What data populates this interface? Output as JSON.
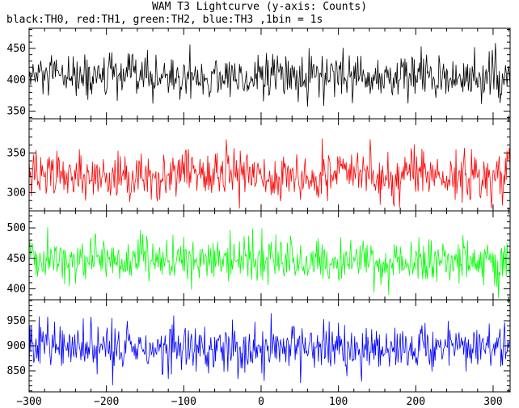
{
  "chart_data": {
    "type": "line",
    "title": "WAM T3 Lightcurve (y-axis: Counts)",
    "subtitle": "black:TH0, red:TH1, green:TH2, blue:TH3 ,1bin = 1s",
    "xlim": [
      -300,
      322
    ],
    "x_ticks": [
      -300,
      -200,
      -100,
      0,
      100,
      200,
      300
    ],
    "x_step": 1,
    "grid": false,
    "panels": [
      {
        "name": "TH0",
        "color": "#000000",
        "ylim": [
          338,
          482
        ],
        "y_ticks": [
          350,
          400,
          450
        ],
        "mean": 404,
        "noise": 18,
        "min": 340,
        "max": 480
      },
      {
        "name": "TH1",
        "color": "#ff0000",
        "ylim": [
          277,
          393
        ],
        "y_ticks": [
          300,
          350
        ],
        "mean": 322,
        "noise": 16,
        "min": 280,
        "max": 390
      },
      {
        "name": "TH2",
        "color": "#00ff00",
        "ylim": [
          382,
          528
        ],
        "y_ticks": [
          400,
          450,
          500
        ],
        "mean": 447,
        "noise": 19,
        "min": 385,
        "max": 525
      },
      {
        "name": "TH3",
        "color": "#0000ff",
        "ylim": [
          808,
          992
        ],
        "y_ticks": [
          850,
          900,
          950
        ],
        "mean": 897,
        "noise": 25,
        "min": 810,
        "max": 990
      }
    ]
  }
}
